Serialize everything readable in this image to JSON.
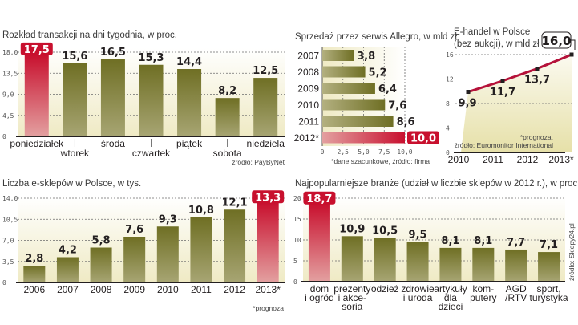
{
  "colors": {
    "bar": "#7a7a2e",
    "highlight": "#c8102e",
    "line": "#b5123a",
    "background_fill": "#f2efcf"
  },
  "chart_data": [
    {
      "id": "weekday",
      "type": "bar",
      "title": "Rozkład transakcji na dni tygodnia, w proc.",
      "categories": [
        "poniedziałek",
        "wtorek",
        "środa",
        "czwartek",
        "piątek",
        "sobota",
        "niedziela"
      ],
      "values": [
        17.5,
        15.6,
        16.5,
        15.3,
        14.4,
        8.2,
        12.5
      ],
      "value_labels": [
        "17,5",
        "15,6",
        "16,5",
        "15,3",
        "14,4",
        "8,2",
        "12,5"
      ],
      "highlight_index": 0,
      "yticks": [
        "0",
        "4,5",
        "9,0",
        "13,5",
        "18,0"
      ],
      "ylim": [
        0,
        18
      ],
      "grid": true,
      "source": "źródło: PayByNet"
    },
    {
      "id": "allegro",
      "type": "bar",
      "orientation": "horizontal",
      "title": "Sprzedaż przez serwis Allegro, w mld zł",
      "categories": [
        "2007",
        "2008",
        "2009",
        "2010",
        "2011",
        "2012*"
      ],
      "values": [
        3.8,
        5.2,
        6.4,
        7.6,
        8.6,
        10.0
      ],
      "value_labels": [
        "3,8",
        "5,2",
        "6,4",
        "7,6",
        "8,6",
        "10,0"
      ],
      "highlight_index": 5,
      "xticks": [
        "0",
        "2,5",
        "5,0",
        "7,5",
        "10,0"
      ],
      "xlim": [
        0,
        10
      ],
      "grid": true,
      "footnote": "*dane szacunkowe, źródło: firma"
    },
    {
      "id": "ehandel",
      "type": "line",
      "title": "E-handel w Polsce",
      "subtitle": "(bez aukcji), w mld zł",
      "x": [
        "2010",
        "2011",
        "2012",
        "2013*"
      ],
      "values": [
        9.9,
        11.7,
        13.7,
        16.0
      ],
      "value_labels": [
        "9,9",
        "11,7",
        "13,7",
        "16,0"
      ],
      "highlight_index": 3,
      "yticks": [
        "0",
        "4",
        "8",
        "12",
        "16"
      ],
      "ylim": [
        0,
        16
      ],
      "grid": true,
      "footnote": "*prognoza,",
      "source": "źródło: Euromonitor International"
    },
    {
      "id": "eshops",
      "type": "bar",
      "title": "Liczba e-sklepów w Polsce, w tys.",
      "categories": [
        "2006",
        "2007",
        "2008",
        "2009",
        "2010",
        "2011",
        "2012",
        "2013*"
      ],
      "values": [
        2.8,
        4.2,
        5.8,
        7.6,
        9.3,
        10.8,
        12.1,
        13.3
      ],
      "value_labels": [
        "2,8",
        "4,2",
        "5,8",
        "7,6",
        "9,3",
        "10,8",
        "12,1",
        "13,3"
      ],
      "highlight_index": 7,
      "yticks": [
        "0",
        "3,5",
        "7,0",
        "10,5",
        "14,0"
      ],
      "ylim": [
        0,
        14
      ],
      "grid": true,
      "footnote": "*prognoza"
    },
    {
      "id": "branze",
      "type": "bar",
      "title": "Najpopularniejsze branże (udział w liczbie sklepów w 2012 r.), w proc.",
      "categories": [
        [
          "dom",
          "i ogród"
        ],
        [
          "prezenty",
          "i akce-",
          "soria"
        ],
        [
          "odzież"
        ],
        [
          "zdrowie",
          "i uroda"
        ],
        [
          "artykuły",
          "dla",
          "dzieci"
        ],
        [
          "kom-",
          "putery"
        ],
        [
          "AGD",
          "/RTV"
        ],
        [
          "sport,",
          "turystyka"
        ]
      ],
      "values": [
        18.7,
        10.9,
        10.5,
        9.5,
        8.1,
        8.1,
        7.7,
        7.1
      ],
      "value_labels": [
        "18,7",
        "10,9",
        "10,5",
        "9,5",
        "8,1",
        "8,1",
        "7,7",
        "7,1"
      ],
      "highlight_index": 0,
      "yticks": [
        "0",
        "5",
        "10",
        "15",
        "20"
      ],
      "ylim": [
        0,
        20
      ],
      "grid": true,
      "source": "źródło: Sklepy24.pl"
    }
  ]
}
